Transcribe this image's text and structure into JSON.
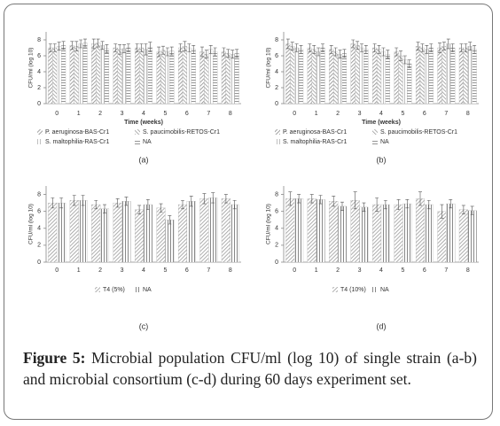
{
  "chart_data": [
    {
      "type": "bar",
      "panel_label": "(a)",
      "ylabel": "CFU/ml (log 10)",
      "xlabel": "Time (weeks)",
      "categories": [
        "0",
        "1",
        "2",
        "3",
        "4",
        "5",
        "6",
        "7",
        "8"
      ],
      "ylim": [
        0,
        9
      ],
      "yticks": [
        0,
        2,
        4,
        6,
        8
      ],
      "series": [
        {
          "name": "P. aeruginosa-BAS-Cr1",
          "color": "#8a8a8a",
          "values": [
            7,
            7.3,
            7.5,
            7,
            7,
            6.5,
            7,
            6.5,
            6.5
          ],
          "errors": [
            0.5,
            0.5,
            0.6,
            0.5,
            0.5,
            0.6,
            0.5,
            0.6,
            0.5
          ]
        },
        {
          "name": "S. paucimobilis-RETOS-Cr1",
          "color": "#9a9a9a",
          "values": [
            7,
            7.2,
            7.6,
            6.8,
            7,
            6.7,
            7.2,
            6.2,
            6.3
          ],
          "errors": [
            0.5,
            0.6,
            0.5,
            0.6,
            0.5,
            0.5,
            0.6,
            0.5,
            0.5
          ]
        },
        {
          "name": "S. maltophilia-RAS-Cr1",
          "color": "#b0b0b0",
          "values": [
            7.2,
            7.5,
            7.3,
            6.9,
            6.8,
            6.5,
            7,
            6.8,
            6.2
          ],
          "errors": [
            0.5,
            0.5,
            0.5,
            0.5,
            0.7,
            0.5,
            0.5,
            0.5,
            0.5
          ]
        },
        {
          "name": "NA",
          "color": "#7a7a7a",
          "values": [
            7.3,
            7.6,
            6.9,
            7,
            7.1,
            6.6,
            6.8,
            6.5,
            6.3
          ],
          "errors": [
            0.5,
            0.5,
            0.5,
            0.5,
            0.6,
            0.5,
            0.5,
            0.5,
            0.5
          ]
        }
      ]
    },
    {
      "type": "bar",
      "panel_label": "(b)",
      "ylabel": "CFU/ml (log 10)",
      "xlabel": "Time (weeks)",
      "categories": [
        "0",
        "1",
        "2",
        "3",
        "4",
        "5",
        "6",
        "7",
        "8"
      ],
      "ylim": [
        0,
        9
      ],
      "yticks": [
        0,
        2,
        4,
        6,
        8
      ],
      "series": [
        {
          "name": "P. aeruginosa-BAS-Cr1",
          "color": "#8a8a8a",
          "values": [
            7.5,
            7,
            6.8,
            7.5,
            7,
            6.5,
            7.2,
            7,
            7
          ],
          "errors": [
            0.6,
            0.5,
            0.5,
            0.5,
            0.5,
            0.5,
            0.5,
            0.6,
            0.5
          ]
        },
        {
          "name": "S. paucimobilis-RETOS-Cr1",
          "color": "#9a9a9a",
          "values": [
            7.2,
            6.8,
            6.5,
            7.3,
            6.8,
            6,
            7,
            7.2,
            7
          ],
          "errors": [
            0.5,
            0.5,
            0.5,
            0.5,
            0.5,
            0.6,
            0.5,
            0.5,
            0.5
          ]
        },
        {
          "name": "S. maltophilia-RAS-Cr1",
          "color": "#b0b0b0",
          "values": [
            7,
            6.5,
            6.2,
            7,
            6.5,
            5.5,
            6.8,
            7.5,
            7.2
          ],
          "errors": [
            0.5,
            0.5,
            0.5,
            0.5,
            0.5,
            0.5,
            0.5,
            0.6,
            0.5
          ]
        },
        {
          "name": "NA",
          "color": "#7a7a7a",
          "values": [
            6.8,
            7,
            6.3,
            6.8,
            6.2,
            5,
            7,
            7,
            6.8
          ],
          "errors": [
            0.5,
            0.5,
            0.5,
            0.5,
            0.5,
            0.5,
            0.5,
            0.5,
            0.5
          ]
        }
      ]
    },
    {
      "type": "bar",
      "panel_label": "(c)",
      "ylabel": "CFU/ml (log 10)",
      "categories": [
        "0",
        "1",
        "2",
        "3",
        "4",
        "5",
        "6",
        "7",
        "8"
      ],
      "ylim": [
        0,
        9
      ],
      "yticks": [
        0,
        2,
        4,
        6,
        8
      ],
      "series": [
        {
          "name": "T4 (5%)",
          "color": "#9a9a9a",
          "values": [
            7,
            7.3,
            6.8,
            7,
            6.2,
            6.4,
            6.8,
            7.5,
            7.5
          ],
          "errors": [
            0.6,
            0.6,
            0.5,
            0.5,
            0.5,
            0.5,
            0.5,
            0.6,
            0.5
          ]
        },
        {
          "name": "NA",
          "color": "#6a6a6a",
          "values": [
            7,
            7.3,
            6.3,
            7.2,
            6.8,
            5,
            7.2,
            7.6,
            6.8
          ],
          "errors": [
            0.6,
            0.6,
            0.5,
            0.5,
            0.6,
            0.5,
            0.6,
            0.6,
            0.5
          ]
        }
      ]
    },
    {
      "type": "bar",
      "panel_label": "(d)",
      "ylabel": "CFU/ml (log 10)",
      "categories": [
        "0",
        "1",
        "2",
        "3",
        "4",
        "5",
        "6",
        "7",
        "8"
      ],
      "ylim": [
        0,
        9
      ],
      "yticks": [
        0,
        2,
        4,
        6,
        8
      ],
      "series": [
        {
          "name": "T4 (10%)",
          "color": "#9a9a9a",
          "values": [
            7.5,
            7.5,
            7.2,
            7.3,
            6.8,
            6.8,
            7.5,
            6,
            6.2
          ],
          "errors": [
            0.8,
            0.5,
            0.6,
            1,
            0.8,
            0.6,
            0.8,
            0.8,
            0.5
          ]
        },
        {
          "name": "NA",
          "color": "#6a6a6a",
          "values": [
            7.5,
            7.4,
            6.6,
            6.5,
            6.8,
            6.9,
            6.8,
            6.9,
            6.1
          ],
          "errors": [
            0.5,
            0.5,
            0.5,
            0.5,
            0.5,
            0.5,
            0.5,
            0.5,
            0.5
          ]
        }
      ]
    }
  ],
  "caption": {
    "label": "Figure 5:",
    "text": " Microbial population CFU/ml (log 10) of single strain (a-b) and microbial consortium (c-d) during 60 days experiment set."
  }
}
